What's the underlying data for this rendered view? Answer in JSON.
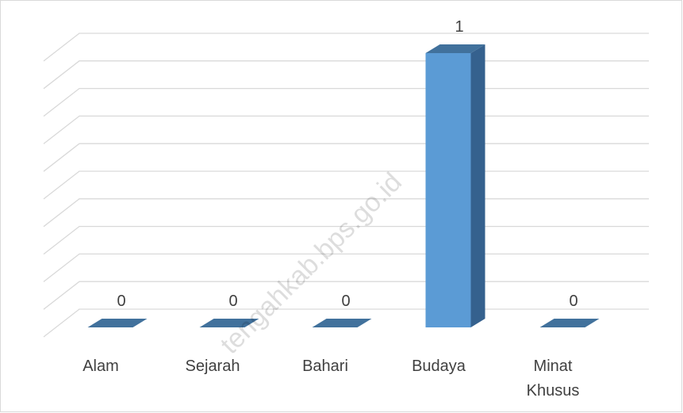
{
  "chart_data": {
    "type": "bar3d",
    "categories": [
      "Alam",
      "Sejarah",
      "Bahari",
      "Budaya",
      "Minat Khusus"
    ],
    "values": [
      0,
      0,
      0,
      1,
      0
    ],
    "color": "#5b9bd5",
    "ylim": [
      0,
      1
    ],
    "yticks": [
      0,
      0.1,
      0.2,
      0.3,
      0.4,
      0.5,
      0.6,
      0.7,
      0.8,
      0.9,
      1
    ],
    "grid": true,
    "watermark": "tengahkab.bps.go.id"
  }
}
